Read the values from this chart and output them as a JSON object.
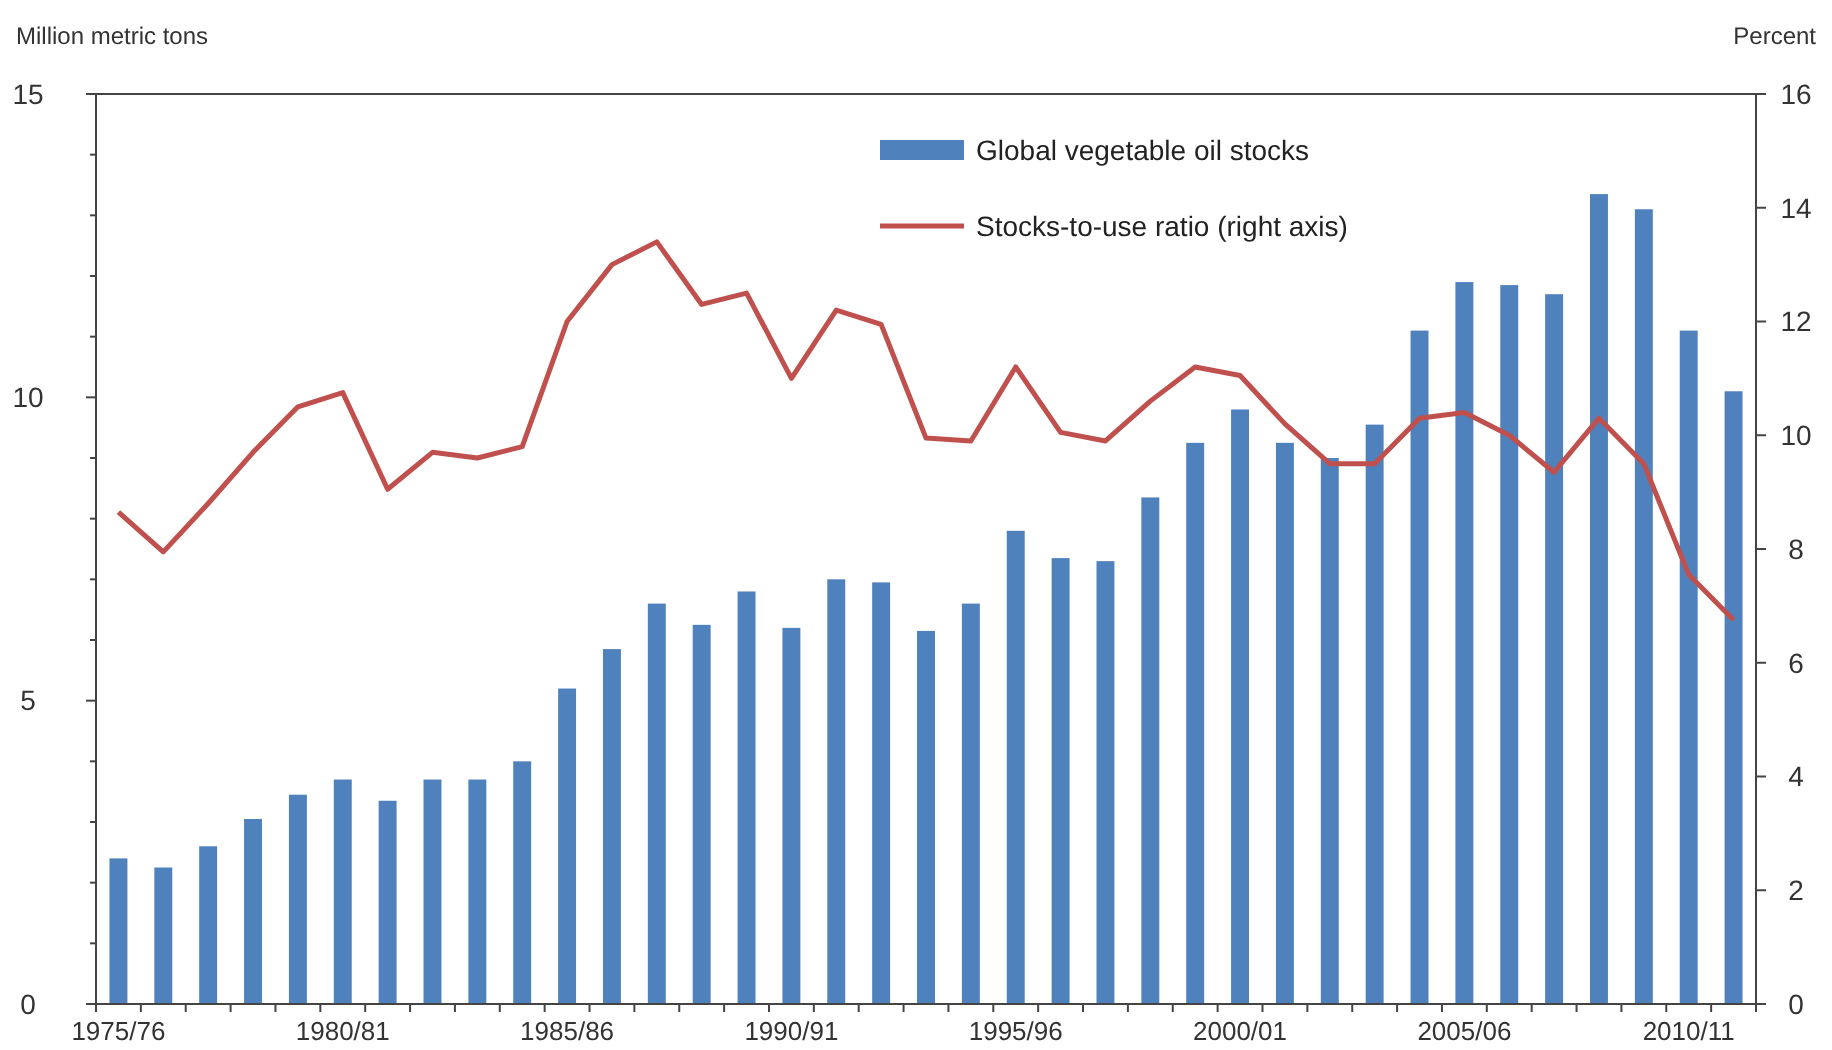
{
  "chart_data": {
    "type": "bar",
    "ylabel": "Million metric tons",
    "y2label": "Percent",
    "categories": [
      "1975/76",
      null,
      null,
      null,
      null,
      "1980/81",
      null,
      null,
      null,
      null,
      "1985/86",
      null,
      null,
      null,
      null,
      "1990/91",
      null,
      null,
      null,
      null,
      "1995/96",
      null,
      null,
      null,
      null,
      "2000/01",
      null,
      null,
      null,
      null,
      "2005/06",
      null,
      null,
      null,
      null,
      "2010/11",
      null
    ],
    "series": [
      {
        "name": "Global vegetable oil stocks",
        "color": "#4f81bd",
        "values": [
          2.4,
          2.25,
          2.6,
          3.05,
          3.45,
          3.7,
          3.35,
          3.7,
          3.7,
          4.0,
          5.2,
          5.85,
          6.6,
          6.25,
          6.8,
          6.2,
          7.0,
          6.95,
          6.15,
          6.6,
          7.8,
          7.35,
          7.3,
          8.35,
          9.25,
          9.8,
          9.25,
          9.0,
          9.55,
          11.1,
          11.9,
          11.85,
          11.7,
          13.35,
          13.1,
          11.1,
          10.1
        ]
      },
      {
        "name": "Stocks-to-use ratio (right axis)",
        "type": "line",
        "axis": "y2",
        "color": "#c0504d",
        "values": [
          8.65,
          7.95,
          8.8,
          9.7,
          10.5,
          10.75,
          9.05,
          9.7,
          9.6,
          9.8,
          12.0,
          13.0,
          13.4,
          12.3,
          12.5,
          11.0,
          12.2,
          11.95,
          9.95,
          9.9,
          11.2,
          10.05,
          9.9,
          10.6,
          11.2,
          11.05,
          10.2,
          9.5,
          9.5,
          10.3,
          10.4,
          10.0,
          9.35,
          10.3,
          9.5,
          7.55,
          6.75
        ]
      }
    ],
    "ylim": [
      0,
      15
    ],
    "yticks": [
      0,
      {
        "value": 1,
        "label": null
      },
      {
        "value": 2,
        "label": null
      },
      {
        "value": 3,
        "label": null
      },
      {
        "value": 4,
        "label": null
      },
      5,
      {
        "value": 6,
        "label": null
      },
      {
        "value": 7,
        "label": null
      },
      {
        "value": 8,
        "label": null
      },
      {
        "value": 9,
        "label": null
      },
      10,
      {
        "value": 11,
        "label": null
      },
      {
        "value": 12,
        "label": null
      },
      {
        "value": 13,
        "label": null
      },
      {
        "value": 14,
        "label": null
      },
      15
    ],
    "y2lim": [
      0,
      16
    ],
    "y2ticks": [
      0,
      2,
      4,
      6,
      8,
      10,
      12,
      14,
      16
    ],
    "grid": false,
    "legend": "top right",
    "marker": "none",
    "line_style": "solid"
  }
}
